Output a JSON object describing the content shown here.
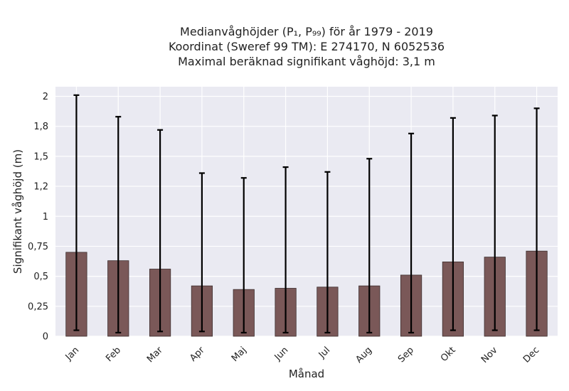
{
  "chart_data": {
    "type": "bar",
    "title": [
      "Medianvåghöjder (P₁, P₉₉) för år 1979 - 2019",
      "Koordinat (Sweref 99 TM): E 274170, N 6052536",
      "Maximal beräknad signifikant våghöjd: 3,1 m"
    ],
    "xlabel": "Månad",
    "ylabel": "Signifikant våghöjd (m)",
    "categories": [
      "Jan",
      "Feb",
      "Mar",
      "Apr",
      "Maj",
      "Jun",
      "Jul",
      "Aug",
      "Sep",
      "Okt",
      "Nov",
      "Dec"
    ],
    "values": [
      0.7,
      0.63,
      0.56,
      0.42,
      0.39,
      0.4,
      0.41,
      0.42,
      0.51,
      0.62,
      0.66,
      0.71
    ],
    "error_low": [
      0.05,
      0.03,
      0.04,
      0.04,
      0.03,
      0.03,
      0.03,
      0.03,
      0.03,
      0.05,
      0.05,
      0.05
    ],
    "error_high": [
      2.01,
      1.83,
      1.72,
      1.36,
      1.32,
      1.41,
      1.37,
      1.48,
      1.69,
      1.82,
      1.84,
      1.9
    ],
    "ylim": [
      0,
      2.08
    ],
    "yticks": [
      0,
      0.25,
      0.5,
      0.75,
      1,
      1.25,
      1.5,
      1.75,
      2
    ],
    "ytick_labels": [
      "0",
      "0,25",
      "0,5",
      "0,75",
      "1",
      "1,2",
      "1,5",
      "1,8",
      "2"
    ],
    "grid": true,
    "bar_color": "#7a5858",
    "background_color": "#eaeaf2"
  }
}
